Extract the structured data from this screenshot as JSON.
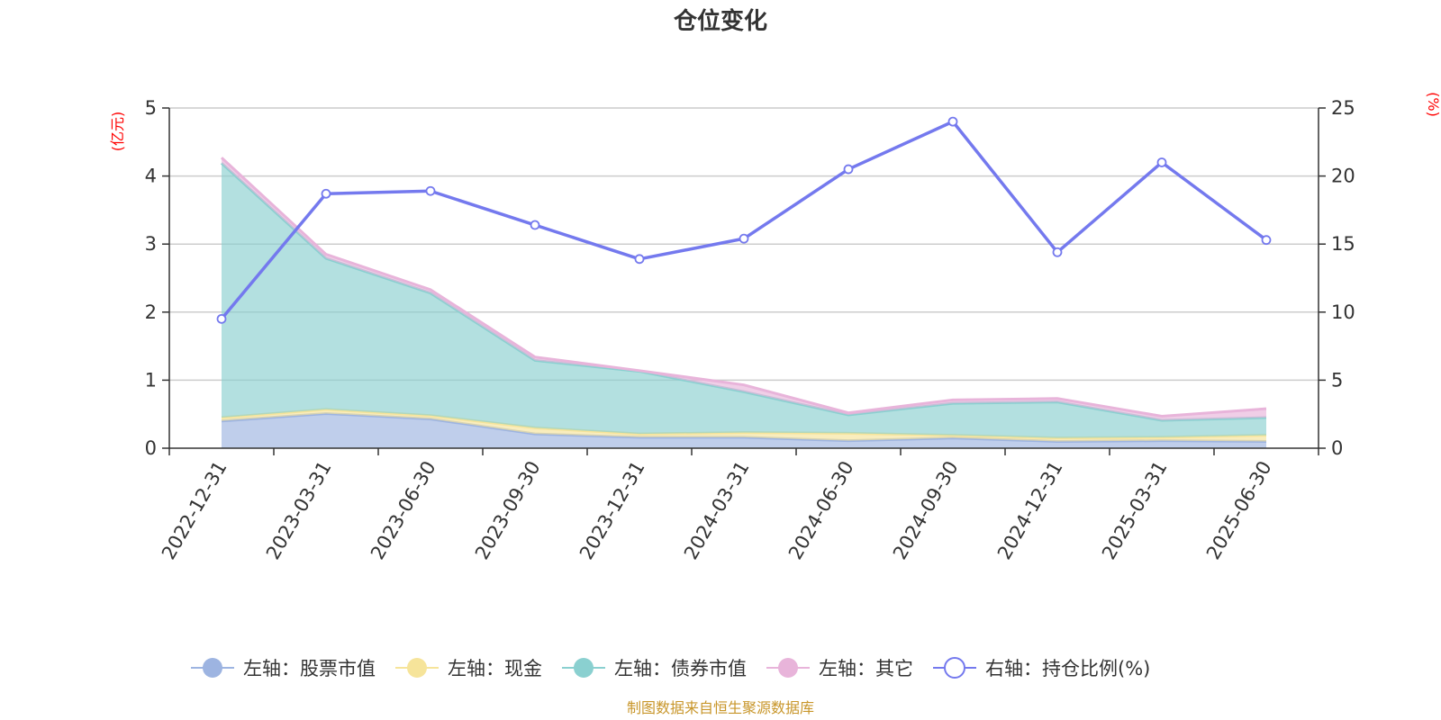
{
  "chart_data": {
    "type": "area",
    "title": "仓位变化",
    "left_unit": "(亿元)",
    "right_unit": "(%)",
    "categories": [
      "2022-12-31",
      "2023-03-31",
      "2023-06-30",
      "2023-09-30",
      "2023-12-31",
      "2024-03-31",
      "2024-06-30",
      "2024-09-30",
      "2024-12-31",
      "2025-03-31",
      "2025-06-30"
    ],
    "left_axis": {
      "min": 0,
      "max": 5,
      "ticks": [
        "0",
        "1",
        "2",
        "3",
        "4",
        "5"
      ]
    },
    "right_axis": {
      "min": 0,
      "max": 25,
      "ticks": [
        "0",
        "5",
        "10",
        "15",
        "20",
        "25"
      ]
    },
    "grid": true,
    "legend_position": "bottom",
    "stacked_series": [
      {
        "name": "左轴：股票市值",
        "color": "#9db4e1",
        "values": [
          0.4,
          0.51,
          0.43,
          0.21,
          0.16,
          0.16,
          0.11,
          0.15,
          0.1,
          0.11,
          0.1
        ]
      },
      {
        "name": "左轴：现金",
        "color": "#f6e49a",
        "values": [
          0.05,
          0.06,
          0.05,
          0.09,
          0.05,
          0.07,
          0.11,
          0.04,
          0.05,
          0.05,
          0.09
        ]
      },
      {
        "name": "左轴：债券市值",
        "color": "#8ad0d0",
        "values": [
          3.74,
          2.22,
          1.8,
          0.99,
          0.92,
          0.6,
          0.27,
          0.47,
          0.53,
          0.25,
          0.26
        ]
      },
      {
        "name": "左轴：其它",
        "color": "#e8b4da",
        "values": [
          0.08,
          0.06,
          0.05,
          0.05,
          0.01,
          0.1,
          0.03,
          0.05,
          0.05,
          0.06,
          0.13
        ]
      }
    ],
    "line_series": {
      "name": "右轴：持仓比例(%)",
      "color": "#7479ee",
      "values": [
        9.5,
        18.7,
        18.9,
        16.4,
        13.9,
        15.4,
        20.5,
        24.0,
        14.4,
        21.0,
        15.3
      ]
    }
  },
  "footer": {
    "source": "制图数据来自恒生聚源数据库"
  }
}
